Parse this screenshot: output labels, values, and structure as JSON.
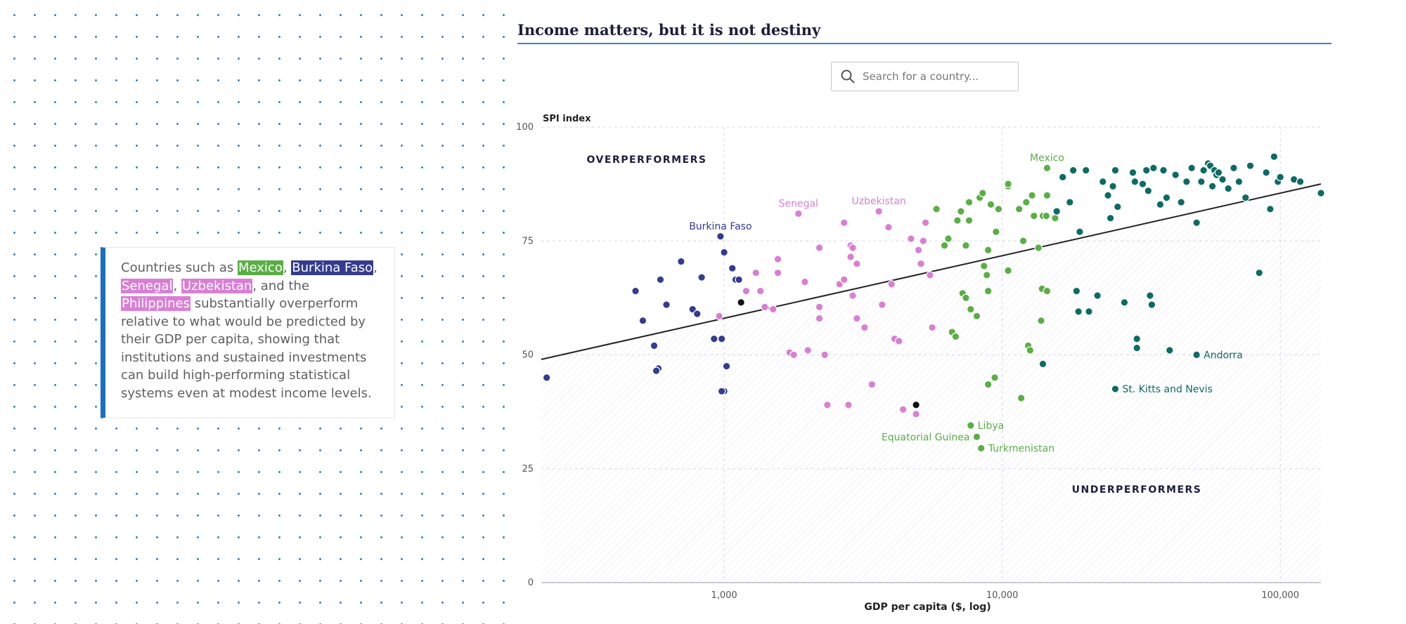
{
  "callout": {
    "prefix": "Countries such as ",
    "country_1": "Mexico",
    "sep_1": ", ",
    "country_2": "Burkina Faso",
    "sep_2": ",",
    "country_3": "Senegal",
    "sep_3": ", ",
    "country_4": "Uzbekistan",
    "sep_4": ", and the ",
    "country_5": "Philippines",
    "suffix": " substantially overperform relative to what would be predicted by their GDP per capita, showing that institutions and sustained investments can build high-performing statistical systems even at modest income levels."
  },
  "search": {
    "placeholder": "Search for a country..."
  },
  "colors": {
    "accent_blue": "#1a6fbf",
    "low_income": "#343c8f",
    "lower_middle": "#d97fd3",
    "upper_middle": "#5aae45",
    "high_income": "#0c6b63",
    "trend": "#222222"
  },
  "chart_data": {
    "type": "scatter",
    "title": "Income matters, but it is not destiny",
    "xlabel": "GDP per capita ($, log)",
    "ylabel": "SPI index",
    "x_scale": "log",
    "xlim": [
      220,
      140000
    ],
    "ylim": [
      0,
      100
    ],
    "x_ticks": [
      1000,
      10000,
      100000
    ],
    "x_tick_labels": [
      "1,000",
      "10,000",
      "100,000"
    ],
    "y_ticks": [
      0,
      25,
      50,
      75,
      100
    ],
    "y_tick_labels": [
      "0",
      "25",
      "50",
      "75",
      "100"
    ],
    "grid": true,
    "region_labels": {
      "over": "OVERPERFORMERS",
      "under": "UNDERPERFORMERS"
    },
    "trend_line": {
      "x": [
        220,
        140000
      ],
      "y": [
        49,
        87.5
      ]
    },
    "series": [
      {
        "color": "#343c8f",
        "points": [
          [
            230,
            45
          ],
          [
            480,
            64
          ],
          [
            510,
            57.5
          ],
          [
            560,
            52
          ],
          [
            580,
            47
          ],
          [
            590,
            66.5
          ],
          [
            620,
            61
          ],
          [
            700,
            70.5
          ],
          [
            770,
            60
          ],
          [
            800,
            59
          ],
          [
            830,
            67
          ],
          [
            920,
            53.5
          ],
          [
            970,
            76
          ],
          [
            980,
            53.5
          ],
          [
            1000,
            72.5
          ],
          [
            1000,
            42
          ],
          [
            1020,
            47.5
          ],
          [
            1070,
            69
          ],
          [
            1100,
            66.5
          ],
          [
            1130,
            66.5
          ],
          [
            570,
            46.5
          ],
          [
            980,
            42
          ]
        ]
      },
      {
        "color": "#d97fd3",
        "points": [
          [
            960,
            58.5
          ],
          [
            1200,
            64
          ],
          [
            1300,
            68
          ],
          [
            1350,
            64
          ],
          [
            1400,
            60.5
          ],
          [
            1500,
            60
          ],
          [
            1560,
            71
          ],
          [
            1560,
            68
          ],
          [
            1720,
            50.5
          ],
          [
            1780,
            50
          ],
          [
            1850,
            81
          ],
          [
            1950,
            66
          ],
          [
            2000,
            51
          ],
          [
            2200,
            60.5
          ],
          [
            2200,
            58
          ],
          [
            2200,
            73.5
          ],
          [
            2300,
            50
          ],
          [
            2350,
            39
          ],
          [
            2600,
            65.5
          ],
          [
            2700,
            79
          ],
          [
            2700,
            66.5
          ],
          [
            2800,
            39
          ],
          [
            2850,
            74
          ],
          [
            2850,
            71.5
          ],
          [
            2900,
            63
          ],
          [
            2900,
            73.5
          ],
          [
            3000,
            58
          ],
          [
            3000,
            70
          ],
          [
            3200,
            56
          ],
          [
            3400,
            43.5
          ],
          [
            3600,
            81.5
          ],
          [
            3700,
            61
          ],
          [
            3900,
            78
          ],
          [
            4000,
            65.5
          ],
          [
            4100,
            53.5
          ],
          [
            4250,
            53
          ],
          [
            4400,
            38
          ],
          [
            4700,
            75.5
          ],
          [
            4900,
            37
          ],
          [
            5000,
            73
          ],
          [
            5100,
            70
          ],
          [
            5200,
            75
          ],
          [
            5300,
            79
          ],
          [
            5500,
            67.5
          ],
          [
            5600,
            56
          ]
        ]
      },
      {
        "color": "#5aae45",
        "points": [
          [
            5800,
            82
          ],
          [
            6200,
            74
          ],
          [
            6400,
            75.5
          ],
          [
            6600,
            55
          ],
          [
            6800,
            54
          ],
          [
            6900,
            79.5
          ],
          [
            7100,
            81.5
          ],
          [
            7200,
            63.5
          ],
          [
            7400,
            74
          ],
          [
            7400,
            62.5
          ],
          [
            7600,
            83.5
          ],
          [
            7600,
            79.5
          ],
          [
            7700,
            60
          ],
          [
            7700,
            34.5
          ],
          [
            8100,
            32
          ],
          [
            8100,
            58.5
          ],
          [
            8300,
            84.5
          ],
          [
            8400,
            29.5
          ],
          [
            8500,
            85.5
          ],
          [
            8600,
            69.5
          ],
          [
            8800,
            67.5
          ],
          [
            8900,
            73
          ],
          [
            8900,
            64
          ],
          [
            8900,
            43.5
          ],
          [
            9100,
            83
          ],
          [
            9400,
            45
          ],
          [
            9500,
            77
          ],
          [
            9700,
            82
          ],
          [
            10500,
            87
          ],
          [
            10500,
            87.5
          ],
          [
            10500,
            68.5
          ],
          [
            11500,
            82
          ],
          [
            11700,
            40.5
          ],
          [
            11900,
            75
          ],
          [
            12200,
            83.5
          ],
          [
            12400,
            52
          ],
          [
            12600,
            51
          ],
          [
            12800,
            85
          ],
          [
            13000,
            80.5
          ],
          [
            13500,
            73.5
          ],
          [
            13800,
            57.5
          ],
          [
            13900,
            64.5
          ],
          [
            14000,
            80.5
          ],
          [
            14400,
            80.5
          ],
          [
            14500,
            64
          ],
          [
            14500,
            85
          ],
          [
            14500,
            91
          ],
          [
            15500,
            80
          ]
        ]
      },
      {
        "color": "#0c6b63",
        "points": [
          [
            14000,
            48
          ],
          [
            15700,
            81.5
          ],
          [
            16500,
            89
          ],
          [
            17500,
            83.5
          ],
          [
            18000,
            90.5
          ],
          [
            18500,
            64
          ],
          [
            18800,
            59.5
          ],
          [
            19000,
            77
          ],
          [
            20000,
            90.5
          ],
          [
            20500,
            59.5
          ],
          [
            22000,
            63
          ],
          [
            23000,
            88
          ],
          [
            24000,
            85
          ],
          [
            24500,
            80
          ],
          [
            25000,
            87
          ],
          [
            25500,
            90.5
          ],
          [
            26000,
            82.5
          ],
          [
            27500,
            61.5
          ],
          [
            29500,
            90
          ],
          [
            30000,
            88
          ],
          [
            30500,
            53.5
          ],
          [
            30500,
            51.5
          ],
          [
            32000,
            87.5
          ],
          [
            33000,
            90.5
          ],
          [
            33500,
            86
          ],
          [
            34000,
            63
          ],
          [
            34500,
            61
          ],
          [
            35000,
            91
          ],
          [
            37000,
            83
          ],
          [
            38000,
            90.5
          ],
          [
            39000,
            84.5
          ],
          [
            40000,
            51
          ],
          [
            42000,
            89.5
          ],
          [
            44000,
            83.5
          ],
          [
            46000,
            88
          ],
          [
            48000,
            91
          ],
          [
            50000,
            79
          ],
          [
            50000,
            50
          ],
          [
            52000,
            88
          ],
          [
            53000,
            90.5
          ],
          [
            55000,
            92
          ],
          [
            56000,
            91.5
          ],
          [
            57000,
            87
          ],
          [
            58000,
            90.5
          ],
          [
            59000,
            89.5
          ],
          [
            60000,
            90
          ],
          [
            62000,
            88.5
          ],
          [
            65000,
            86.5
          ],
          [
            68000,
            91
          ],
          [
            71000,
            88
          ],
          [
            75000,
            84.5
          ],
          [
            78000,
            91.5
          ],
          [
            84000,
            68
          ],
          [
            89000,
            90
          ],
          [
            92000,
            82
          ],
          [
            95000,
            93.5
          ],
          [
            98000,
            88
          ],
          [
            100000,
            89
          ],
          [
            112000,
            88.5
          ],
          [
            118000,
            88
          ],
          [
            140000,
            85.5
          ],
          [
            25500,
            42.5
          ]
        ]
      },
      {
        "color": "#111111",
        "points": [
          [
            1150,
            61.5
          ],
          [
            4900,
            39
          ]
        ]
      }
    ],
    "annotations": [
      {
        "text": "Mexico",
        "x": 14500,
        "y": 91,
        "color": "#5aae45",
        "position": "above"
      },
      {
        "text": "Senegal",
        "x": 1850,
        "y": 81,
        "color": "#d97fd3",
        "position": "above"
      },
      {
        "text": "Uzbekistan",
        "x": 3600,
        "y": 81.5,
        "color": "#d97fd3",
        "position": "above"
      },
      {
        "text": "Burkina Faso",
        "x": 970,
        "y": 76,
        "color": "#343c8f",
        "position": "above"
      },
      {
        "text": "Libya",
        "x": 7700,
        "y": 34.5,
        "color": "#5aae45",
        "position": "right"
      },
      {
        "text": "Equatorial Guinea",
        "x": 8100,
        "y": 32,
        "color": "#5aae45",
        "position": "left"
      },
      {
        "text": "Turkmenistan",
        "x": 8400,
        "y": 29.5,
        "color": "#5aae45",
        "position": "right"
      },
      {
        "text": "Andorra",
        "x": 50000,
        "y": 50,
        "color": "#0c6b63",
        "position": "right"
      },
      {
        "text": "St. Kitts and Nevis",
        "x": 25500,
        "y": 42.5,
        "color": "#0c6b63",
        "position": "right"
      }
    ]
  }
}
